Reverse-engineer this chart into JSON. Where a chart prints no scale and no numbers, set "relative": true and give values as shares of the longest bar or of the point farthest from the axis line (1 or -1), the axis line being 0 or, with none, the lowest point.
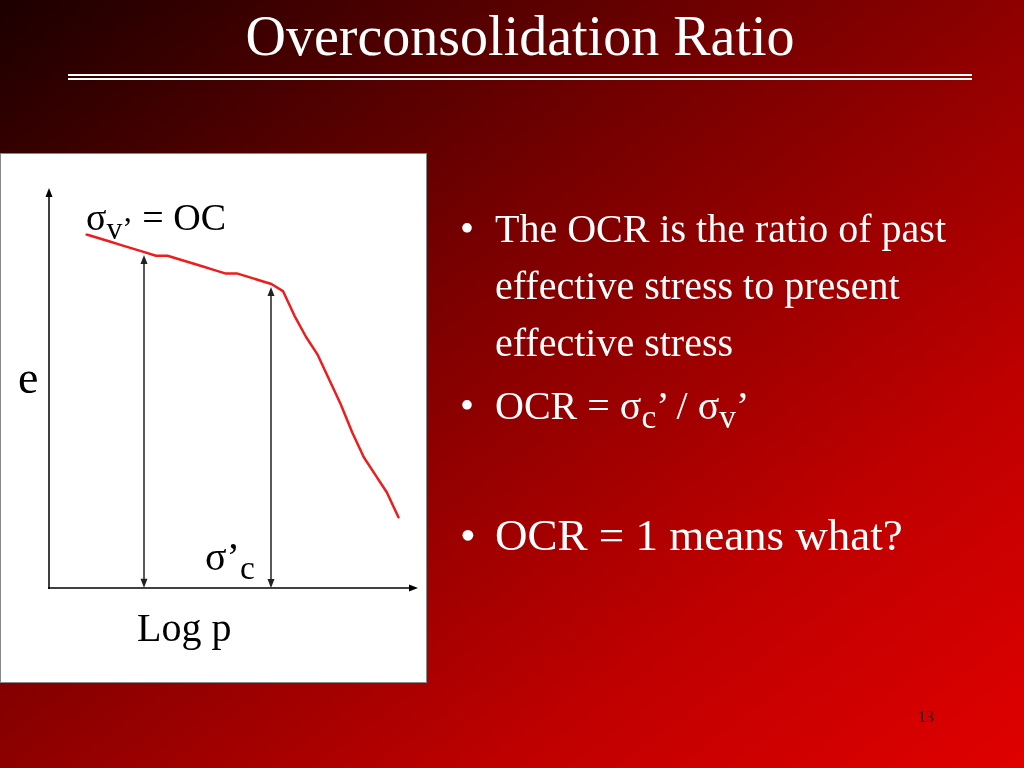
{
  "chart_data": {
    "type": "line",
    "title": "Overconsolidation Ratio",
    "xlabel": "Log p",
    "ylabel": "e",
    "relative": true,
    "marker": "none",
    "categories": [
      null,
      null,
      null,
      null,
      null,
      null,
      null,
      null,
      null,
      null,
      null,
      null,
      null,
      null,
      null,
      null,
      null,
      null,
      null,
      null,
      null,
      null,
      null,
      null,
      null,
      null,
      null,
      null,
      null,
      null,
      null,
      null
    ],
    "series": [
      {
        "color": "#ee1c1c",
        "values": [
          null,
          null,
          null,
          1,
          0.99,
          0.98,
          0.97,
          0.96,
          0.95,
          0.94,
          0.94,
          0.93,
          0.92,
          0.91,
          0.9,
          0.89,
          0.89,
          0.88,
          0.87,
          0.86,
          0.84,
          0.77,
          0.71,
          0.66,
          0.59,
          0.52,
          0.44,
          0.37,
          0.32,
          0.27,
          0.2,
          null
        ]
      }
    ],
    "annotations": [
      "σ$_{v’}$ = OC",
      "σ’$_{c}$",
      "• The OCR is the ratio of past effective stress to present effective stress",
      "• OCR = σ$_{c}$’ / σ$_{v}$’",
      "• OCR = 1 means what?",
      "13"
    ]
  }
}
